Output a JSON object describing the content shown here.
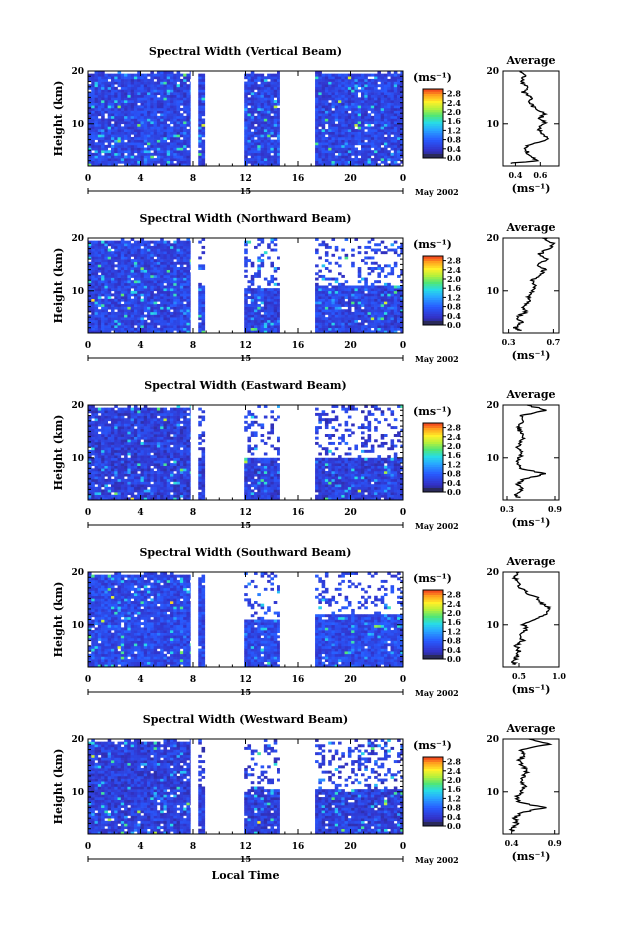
{
  "figure": {
    "xlabel": "Local Time",
    "date_label": "May 2002",
    "day_label": "15",
    "unit_label": "(ms⁻¹)",
    "ylabel": "Height (km)",
    "avg_title": "Average",
    "avg_unit": "(ms⁻¹)"
  },
  "chart_data": [
    {
      "type": "heatmap",
      "title": "Spectral Width (Vertical Beam)",
      "xlabel": "Local Time",
      "ylabel": "Height (km)",
      "x_ticks": [
        "0",
        "4",
        "8",
        "12",
        "16",
        "20",
        "0"
      ],
      "x_range": [
        0,
        24
      ],
      "y_ticks": [
        "10",
        "20"
      ],
      "y_range": [
        2,
        20
      ],
      "colorbar": {
        "label": "(ms⁻¹)",
        "ticks": [
          "0.0",
          "0.4",
          "0.8",
          "1.2",
          "1.6",
          "2.0",
          "2.4",
          "2.8"
        ],
        "range": [
          0,
          3.0
        ]
      },
      "gaps_hours": [
        [
          7.8,
          8.4
        ],
        [
          8.9,
          11.9
        ],
        [
          14.6,
          17.3
        ]
      ],
      "top_km_by_segment": [
        19.5,
        19.5,
        19.5,
        19.5
      ],
      "base_value": 0.5,
      "average_profile": {
        "title": "Average",
        "xlabel": "(ms⁻¹)",
        "x_ticks": [
          "0.4",
          "0.6"
        ],
        "x_range": [
          0.3,
          0.75
        ],
        "heights_km": [
          2.5,
          3,
          4,
          5,
          6,
          7,
          8,
          9,
          10,
          11,
          12,
          13,
          14,
          15,
          16,
          17,
          18,
          19,
          20
        ],
        "values": [
          0.35,
          0.58,
          0.52,
          0.48,
          0.5,
          0.66,
          0.62,
          0.58,
          0.64,
          0.6,
          0.64,
          0.55,
          0.52,
          0.54,
          0.46,
          0.5,
          0.44,
          0.48,
          0.45
        ]
      }
    },
    {
      "type": "heatmap",
      "title": "Spectral Width (Northward Beam)",
      "xlabel": "Local Time",
      "ylabel": "Height (km)",
      "x_ticks": [
        "0",
        "4",
        "8",
        "12",
        "16",
        "20",
        "0"
      ],
      "x_range": [
        0,
        24
      ],
      "y_ticks": [
        "10",
        "20"
      ],
      "y_range": [
        2,
        20
      ],
      "colorbar": {
        "label": "(ms⁻¹)",
        "ticks": [
          "0.0",
          "0.4",
          "0.8",
          "1.2",
          "1.6",
          "2.0",
          "2.4",
          "2.8"
        ],
        "range": [
          0,
          3.0
        ]
      },
      "gaps_hours": [
        [
          7.8,
          8.4
        ],
        [
          8.9,
          11.9
        ],
        [
          14.6,
          17.3
        ]
      ],
      "top_km_by_segment": [
        19.5,
        11.0,
        10.5,
        11.0
      ],
      "base_value": 0.5,
      "average_profile": {
        "title": "Average",
        "xlabel": "(ms⁻¹)",
        "x_ticks": [
          "0.3",
          "0.7"
        ],
        "x_range": [
          0.25,
          0.75
        ],
        "heights_km": [
          2.5,
          3,
          4,
          5,
          6,
          7,
          8,
          9,
          10,
          11,
          12,
          13,
          14,
          15,
          16,
          17,
          18,
          19,
          20
        ],
        "values": [
          0.4,
          0.36,
          0.42,
          0.38,
          0.45,
          0.42,
          0.5,
          0.48,
          0.52,
          0.55,
          0.5,
          0.58,
          0.62,
          0.56,
          0.64,
          0.58,
          0.66,
          0.7,
          0.6
        ]
      }
    },
    {
      "type": "heatmap",
      "title": "Spectral Width (Eastward Beam)",
      "xlabel": "Local Time",
      "ylabel": "Height (km)",
      "x_ticks": [
        "0",
        "4",
        "8",
        "12",
        "16",
        "20",
        "0"
      ],
      "x_range": [
        0,
        24
      ],
      "y_ticks": [
        "10",
        "20"
      ],
      "y_range": [
        2,
        20
      ],
      "colorbar": {
        "label": "(ms⁻¹)",
        "ticks": [
          "0.0",
          "0.4",
          "0.8",
          "1.2",
          "1.6",
          "2.0",
          "2.4",
          "2.8"
        ],
        "range": [
          0,
          3.0
        ]
      },
      "gaps_hours": [
        [
          7.8,
          8.4
        ],
        [
          8.9,
          11.9
        ],
        [
          14.6,
          17.3
        ]
      ],
      "top_km_by_segment": [
        19.5,
        10.5,
        10.0,
        10.0
      ],
      "base_value": 0.45,
      "average_profile": {
        "title": "Average",
        "xlabel": "(ms⁻¹)",
        "x_ticks": [
          "0.3",
          "0.9"
        ],
        "x_range": [
          0.25,
          0.95
        ],
        "heights_km": [
          2.5,
          3,
          4,
          5,
          6,
          7,
          8,
          9,
          10,
          11,
          12,
          13,
          14,
          15,
          16,
          17,
          18,
          19,
          20
        ],
        "values": [
          0.45,
          0.4,
          0.48,
          0.44,
          0.52,
          0.78,
          0.46,
          0.42,
          0.46,
          0.5,
          0.44,
          0.48,
          0.5,
          0.46,
          0.44,
          0.52,
          0.48,
          0.8,
          0.55
        ]
      }
    },
    {
      "type": "heatmap",
      "title": "Spectral Width (Southward Beam)",
      "xlabel": "Local Time",
      "ylabel": "Height (km)",
      "x_ticks": [
        "0",
        "4",
        "8",
        "12",
        "16",
        "20",
        "0"
      ],
      "x_range": [
        0,
        24
      ],
      "y_ticks": [
        "10",
        "20"
      ],
      "y_range": [
        2,
        20
      ],
      "colorbar": {
        "label": "(ms⁻¹)",
        "ticks": [
          "0.0",
          "0.4",
          "0.8",
          "1.2",
          "1.6",
          "2.0",
          "2.4",
          "2.8"
        ],
        "range": [
          0,
          3.0
        ]
      },
      "gaps_hours": [
        [
          7.8,
          8.4
        ],
        [
          8.9,
          11.9
        ],
        [
          14.6,
          17.3
        ]
      ],
      "top_km_by_segment": [
        19.5,
        19.0,
        11.0,
        12.0
      ],
      "base_value": 0.55,
      "average_profile": {
        "title": "Average",
        "xlabel": "(ms⁻¹)",
        "x_ticks": [
          "0.5",
          "1.0"
        ],
        "x_range": [
          0.3,
          1.0
        ],
        "heights_km": [
          2.5,
          3,
          4,
          5,
          6,
          7,
          8,
          9,
          10,
          11,
          12,
          13,
          14,
          15,
          16,
          17,
          18,
          19,
          20
        ],
        "values": [
          0.45,
          0.42,
          0.48,
          0.5,
          0.46,
          0.55,
          0.52,
          0.6,
          0.56,
          0.7,
          0.82,
          0.9,
          0.78,
          0.74,
          0.6,
          0.52,
          0.48,
          0.44,
          0.5
        ]
      }
    },
    {
      "type": "heatmap",
      "title": "Spectral Width (Westward Beam)",
      "xlabel": "Local Time",
      "ylabel": "Height (km)",
      "x_ticks": [
        "0",
        "4",
        "8",
        "12",
        "16",
        "20",
        "0"
      ],
      "x_range": [
        0,
        24
      ],
      "y_ticks": [
        "10",
        "20"
      ],
      "y_range": [
        2,
        20
      ],
      "colorbar": {
        "label": "(ms⁻¹)",
        "ticks": [
          "0.0",
          "0.4",
          "0.8",
          "1.2",
          "1.6",
          "2.0",
          "2.4",
          "2.8"
        ],
        "range": [
          0,
          3.0
        ]
      },
      "gaps_hours": [
        [
          7.8,
          8.4
        ],
        [
          8.9,
          11.9
        ],
        [
          14.6,
          17.3
        ]
      ],
      "top_km_by_segment": [
        19.5,
        11.0,
        10.5,
        10.5
      ],
      "base_value": 0.45,
      "average_profile": {
        "title": "Average",
        "xlabel": "(ms⁻¹)",
        "x_ticks": [
          "0.4",
          "0.9"
        ],
        "x_range": [
          0.3,
          0.95
        ],
        "heights_km": [
          2.5,
          3,
          4,
          5,
          6,
          7,
          8,
          9,
          10,
          11,
          12,
          13,
          14,
          15,
          16,
          17,
          18,
          19,
          20
        ],
        "values": [
          0.42,
          0.4,
          0.46,
          0.44,
          0.5,
          0.78,
          0.48,
          0.46,
          0.52,
          0.56,
          0.5,
          0.54,
          0.58,
          0.52,
          0.48,
          0.56,
          0.5,
          0.84,
          0.6
        ]
      }
    }
  ]
}
